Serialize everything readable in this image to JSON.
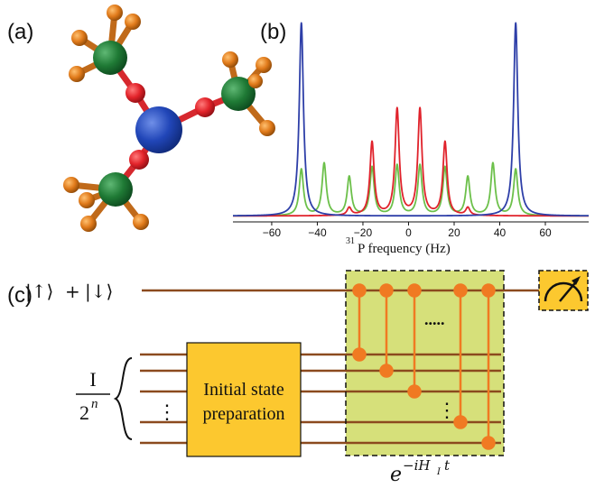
{
  "panels": {
    "a_label": "(a)",
    "b_label": "(b)",
    "c_label": "(c)"
  },
  "molecule": {
    "center_color": "#2146b8",
    "oxygen_color": "#e2232a",
    "carbon_color": "#1f7a35",
    "hydrogen_color": "#e07a1a"
  },
  "chart_data": {
    "type": "line",
    "xlabel_sup": "31",
    "xlabel_main": "P frequency (Hz)",
    "xlim": [
      -77,
      79
    ],
    "x_ticks": [
      -60,
      -40,
      -20,
      0,
      20,
      40,
      60
    ],
    "x_tick_labels": [
      "−60",
      "−40",
      "−20",
      "0",
      "20",
      "40",
      "60"
    ],
    "grid": false,
    "series": [
      {
        "color": "#2e3fa8",
        "peaks": [
          {
            "x": -47,
            "height": 1.0
          },
          {
            "x": 47,
            "height": 1.0
          }
        ]
      },
      {
        "color": "#e0222b",
        "peaks": [
          {
            "x": -26,
            "height": 0.04
          },
          {
            "x": -16,
            "height": 0.38
          },
          {
            "x": -5,
            "height": 0.55
          },
          {
            "x": 5,
            "height": 0.55
          },
          {
            "x": 16,
            "height": 0.38
          },
          {
            "x": 26,
            "height": 0.04
          }
        ]
      },
      {
        "color": "#6cc04a",
        "peaks": [
          {
            "x": -47,
            "height": 0.24
          },
          {
            "x": -37,
            "height": 0.27
          },
          {
            "x": -26,
            "height": 0.2
          },
          {
            "x": -16,
            "height": 0.25
          },
          {
            "x": -5,
            "height": 0.26
          },
          {
            "x": 5,
            "height": 0.26
          },
          {
            "x": 16,
            "height": 0.25
          },
          {
            "x": 26,
            "height": 0.2
          },
          {
            "x": 37,
            "height": 0.27
          },
          {
            "x": 47,
            "height": 0.24
          }
        ]
      }
    ]
  },
  "circuit": {
    "probe_state_ket1": "|↑⟩",
    "probe_state_plus": "+",
    "probe_state_ket2": "|↓⟩",
    "mixed_numerator": "I",
    "mixed_denominator_base": "2",
    "mixed_denominator_exp": "n",
    "init_box_line1": "Initial state",
    "init_box_line2": "preparation",
    "evolution_e": "e",
    "evolution_exponent": "−iH",
    "evolution_sub": "I",
    "evolution_t": "t",
    "wire_color": "#8b4a1e",
    "gate_color": "#f07a22",
    "highlight_color": "#d6e07a",
    "box_color": "#fcc82f",
    "horizontal_dots": ".....",
    "vertical_dots": "⋮"
  }
}
